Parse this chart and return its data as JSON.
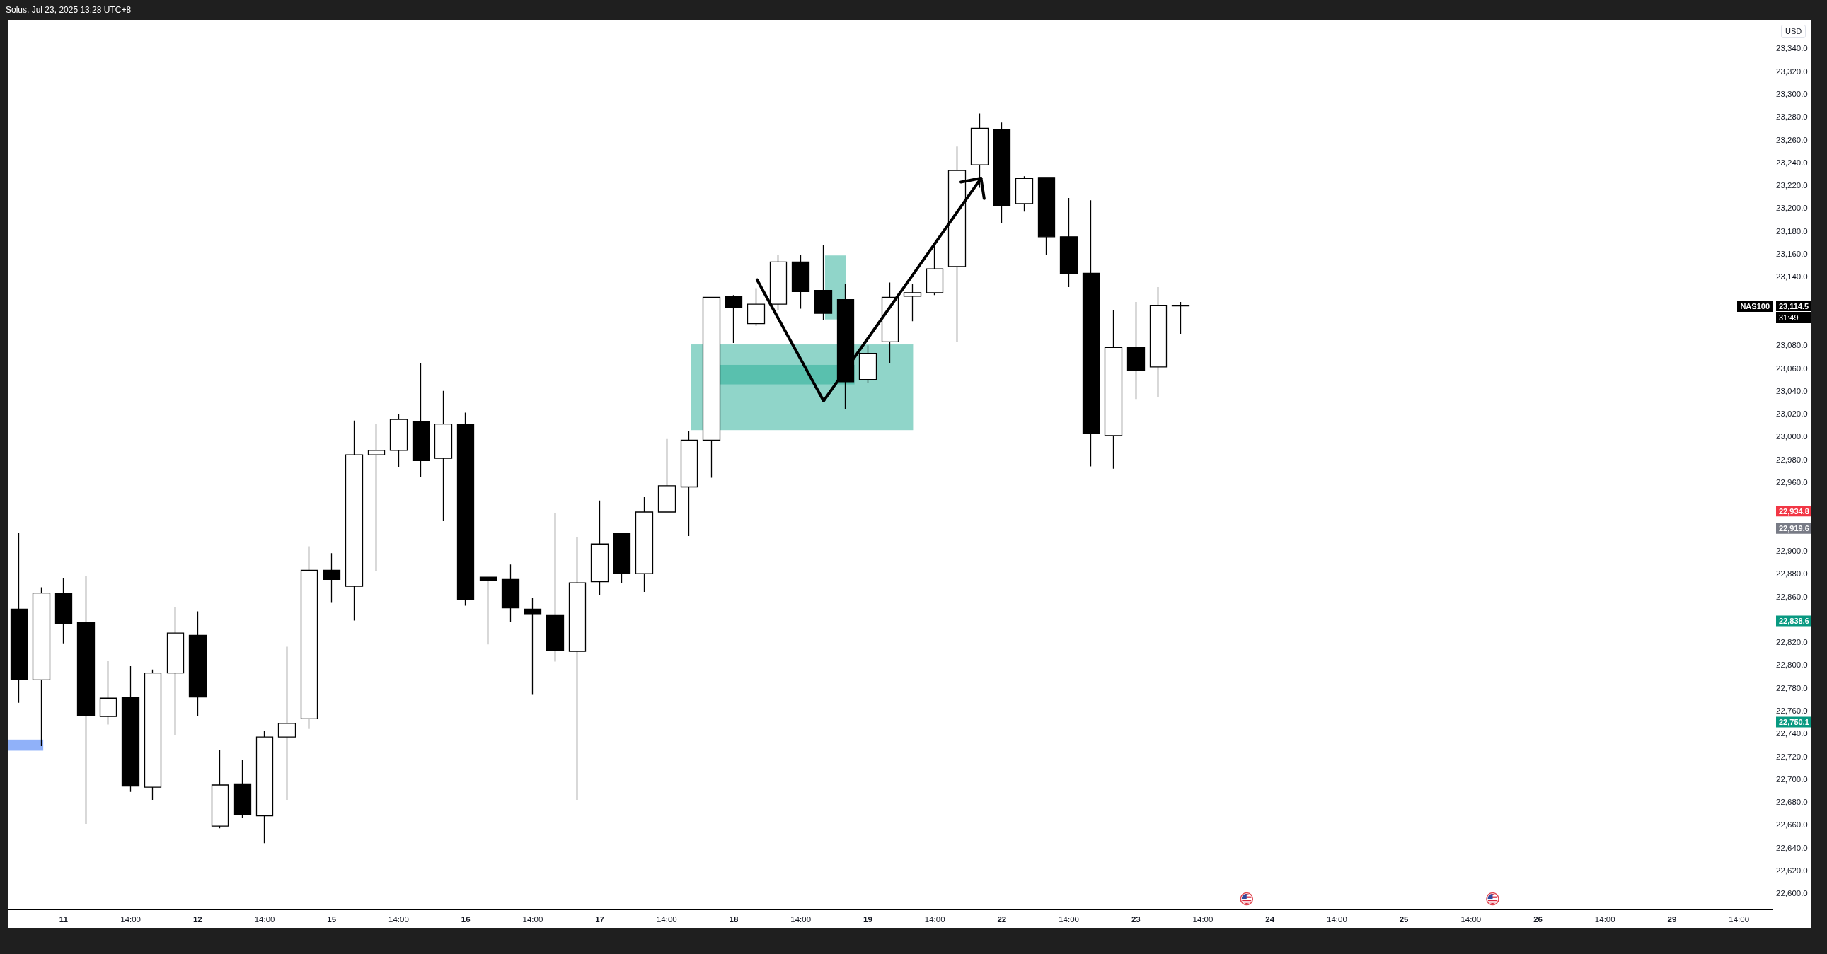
{
  "chart_data": {
    "type": "candlestick",
    "title": "Solus, Jul 23, 2025 13:28 UTC+8",
    "ylabel": "USD",
    "color": "#000000",
    "categories": [
      null,
      null,
      "11",
      null,
      null,
      "14:00",
      null,
      null,
      "12",
      null,
      null,
      "14:00",
      null,
      null,
      "15",
      null,
      null,
      "14:00",
      null,
      null,
      "16",
      null,
      null,
      "14:00",
      null,
      null,
      "17",
      null,
      null,
      "14:00",
      null,
      null,
      "18",
      null,
      null,
      "14:00",
      null,
      null,
      "19",
      null,
      null,
      "14:00",
      null,
      null,
      "22",
      null,
      null,
      "14:00",
      null,
      null,
      "23",
      null,
      null,
      "14:00",
      null,
      null,
      "24",
      null,
      null,
      "14:00",
      null,
      null,
      "25",
      null,
      null,
      "14:00",
      null,
      null,
      "26",
      null,
      null,
      "14:00",
      null,
      null,
      "29",
      null,
      null,
      "14:00",
      null
    ],
    "ohlc": [
      [
        22849,
        22916,
        22767,
        22787
      ],
      [
        22787,
        22868,
        22729,
        22863
      ],
      [
        22863,
        22876,
        22819,
        22836
      ],
      [
        22837,
        22878,
        22661,
        22756
      ],
      [
        22755,
        22804,
        22748,
        22771
      ],
      [
        22772,
        22799,
        22689,
        22694
      ],
      [
        22693,
        22796,
        22682,
        22793
      ],
      [
        22793,
        22851,
        22739,
        22828
      ],
      [
        22826,
        22847,
        22755,
        22772
      ],
      [
        22659,
        22726,
        22657,
        22695
      ],
      [
        22696,
        22717,
        22666,
        22669
      ],
      [
        22668,
        22742,
        22644,
        22737
      ],
      [
        22737,
        22816,
        22682,
        22749
      ],
      [
        22753,
        22904,
        22744,
        22883
      ],
      [
        22883,
        22898,
        22855,
        22875
      ],
      [
        22869,
        23014,
        22839,
        22984
      ],
      [
        22984,
        23011,
        22882,
        22988
      ],
      [
        22988,
        23020,
        22973,
        23015
      ],
      [
        23013,
        23064,
        22965,
        22979
      ],
      [
        22981,
        23040,
        22926,
        23011
      ],
      [
        23011,
        23021,
        22852,
        22857
      ],
      [
        22877,
        22877,
        22818,
        22874
      ],
      [
        22875,
        22888,
        22838,
        22850
      ],
      [
        22849,
        22859,
        22774,
        22845
      ],
      [
        22844,
        22933,
        22803,
        22813
      ],
      [
        22812,
        22912,
        22682,
        22872
      ],
      [
        22873,
        22944,
        22861,
        22906
      ],
      [
        22915,
        22915,
        22872,
        22880
      ],
      [
        22880,
        22947,
        22864,
        22934
      ],
      [
        22934,
        22998,
        22934,
        22957
      ],
      [
        22956,
        23005,
        22913,
        22997
      ],
      [
        22997,
        23122,
        22964,
        23122
      ],
      [
        23123,
        23124,
        23082,
        23113
      ],
      [
        23099,
        23130,
        23097,
        23116
      ],
      [
        23116,
        23159,
        23111,
        23153
      ],
      [
        23153,
        23159,
        23112,
        23127
      ],
      [
        23128,
        23168,
        23102,
        23108
      ],
      [
        23120,
        23134,
        23024,
        23048
      ],
      [
        23050,
        23080,
        23047,
        23073
      ],
      [
        23083,
        23135,
        23064,
        23122
      ],
      [
        23123,
        23134,
        23101,
        23126
      ],
      [
        23126,
        23167,
        23124,
        23147
      ],
      [
        23149,
        23254,
        23083,
        23233
      ],
      [
        23238,
        23283,
        23218,
        23270
      ],
      [
        23269,
        23275,
        23187,
        23202
      ],
      [
        23204,
        23228,
        23197,
        23226
      ],
      [
        23227,
        23227,
        23159,
        23175
      ],
      [
        23175,
        23209,
        23131,
        23143
      ],
      [
        23143,
        23207,
        22974,
        23003
      ],
      [
        23001,
        23111,
        22972,
        23078
      ],
      [
        23078,
        23118,
        23033,
        23058
      ],
      [
        23061,
        23131,
        23035,
        23115
      ],
      [
        23115,
        23118,
        23090,
        23114.5
      ],
      null,
      null,
      null,
      null,
      null,
      null,
      null,
      null,
      null,
      null,
      null,
      null,
      null,
      null,
      null,
      null,
      null,
      null,
      null,
      null,
      null,
      null,
      null,
      null,
      null,
      null
    ],
    "ylim": [
      22586,
      23365
    ],
    "yticks": [
      {
        "value": 22600,
        "label": "22,600.0"
      },
      {
        "value": 22620,
        "label": "22,620.0"
      },
      {
        "value": 22640,
        "label": "22,640.0"
      },
      {
        "value": 22660,
        "label": "22,660.0"
      },
      {
        "value": 22680,
        "label": "22,680.0"
      },
      {
        "value": 22700,
        "label": "22,700.0"
      },
      {
        "value": 22720,
        "label": "22,720.0"
      },
      {
        "value": 22740,
        "label": "22,740.0"
      },
      {
        "value": 22750.1,
        "label": "22,750.1"
      },
      {
        "value": 22760,
        "label": "22,760.0"
      },
      {
        "value": 22780,
        "label": "22,780.0"
      },
      {
        "value": 22800,
        "label": "22,800.0"
      },
      {
        "value": 22820,
        "label": "22,820.0"
      },
      {
        "value": 22838.6,
        "label": "22,838.6"
      },
      {
        "value": 22860,
        "label": "22,860.0"
      },
      {
        "value": 22880,
        "label": "22,880.0"
      },
      {
        "value": 22900,
        "label": "22,900.0"
      },
      {
        "value": 22919.6,
        "label": "22,919.6"
      },
      {
        "value": 22934.8,
        "label": "22,934.8"
      },
      {
        "value": 22960,
        "label": "22,960.0"
      },
      {
        "value": 22980,
        "label": "22,980.0"
      },
      {
        "value": 23000,
        "label": "23,000.0"
      },
      {
        "value": 23020,
        "label": "23,020.0"
      },
      {
        "value": 23040,
        "label": "23,040.0"
      },
      {
        "value": 23060,
        "label": "23,060.0"
      },
      {
        "value": 23080,
        "label": "23,080.0"
      },
      {
        "value": 23114.5,
        "label": "23,114.5"
      },
      {
        "value": 23140,
        "label": "23,140.0"
      },
      {
        "value": 23160,
        "label": "23,160.0"
      },
      {
        "value": 23180,
        "label": "23,180.0"
      },
      {
        "value": 23200,
        "label": "23,200.0"
      },
      {
        "value": 23220,
        "label": "23,220.0"
      },
      {
        "value": 23240,
        "label": "23,240.0"
      },
      {
        "value": 23260,
        "label": "23,260.0"
      },
      {
        "value": 23280,
        "label": "23,280.0"
      },
      {
        "value": 23300,
        "label": "23,300.0"
      },
      {
        "value": 23320,
        "label": "23,320.0"
      },
      {
        "value": 23340,
        "label": "23,340.0"
      }
    ],
    "ref_lines": [
      {
        "axis": "y",
        "value": 23114.5,
        "label": "NAS100",
        "line_style": "dotted",
        "color": "#000000"
      }
    ],
    "annotations": [
      "31:49"
    ]
  }
}
